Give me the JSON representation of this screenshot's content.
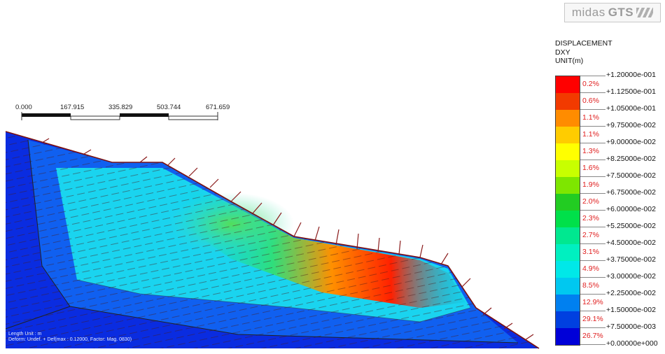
{
  "brand": {
    "name": "midas",
    "product": "GTS"
  },
  "scale_bar": {
    "ticks": [
      "0.000",
      "167.915",
      "335.829",
      "503.744",
      "671.659"
    ]
  },
  "model_info": {
    "lines": [
      "Length Unit : m",
      "Deform: Undef. + Def(max : 0.12000, Factor: Mag. 0830)"
    ]
  },
  "legend": {
    "title": "DISPLACEMENT",
    "component": "DXY",
    "unit": "UNIT(m)",
    "values": [
      "+1.20000e-001",
      "+1.12500e-001",
      "+1.05000e-001",
      "+9.75000e-002",
      "+9.00000e-002",
      "+8.25000e-002",
      "+7.50000e-002",
      "+6.75000e-002",
      "+6.00000e-002",
      "+5.25000e-002",
      "+4.50000e-002",
      "+3.75000e-002",
      "+3.00000e-002",
      "+2.25000e-002",
      "+1.50000e-002",
      "+7.50000e-003",
      "+0.00000e+000"
    ],
    "percentages": [
      "0.2%",
      "0.6%",
      "1.1%",
      "1.1%",
      "1.3%",
      "1.6%",
      "1.9%",
      "2.0%",
      "2.3%",
      "2.7%",
      "3.1%",
      "4.9%",
      "8.5%",
      "12.9%",
      "29.1%",
      "26.7%"
    ],
    "colors": [
      "#ff0000",
      "#f23a00",
      "#ff8c00",
      "#ffcc00",
      "#ffff00",
      "#c8ff00",
      "#7ee600",
      "#22cc22",
      "#00e04a",
      "#00e890",
      "#00f0c0",
      "#00e8e8",
      "#00c8f0",
      "#0080f0",
      "#0040e0",
      "#0000d8"
    ]
  }
}
